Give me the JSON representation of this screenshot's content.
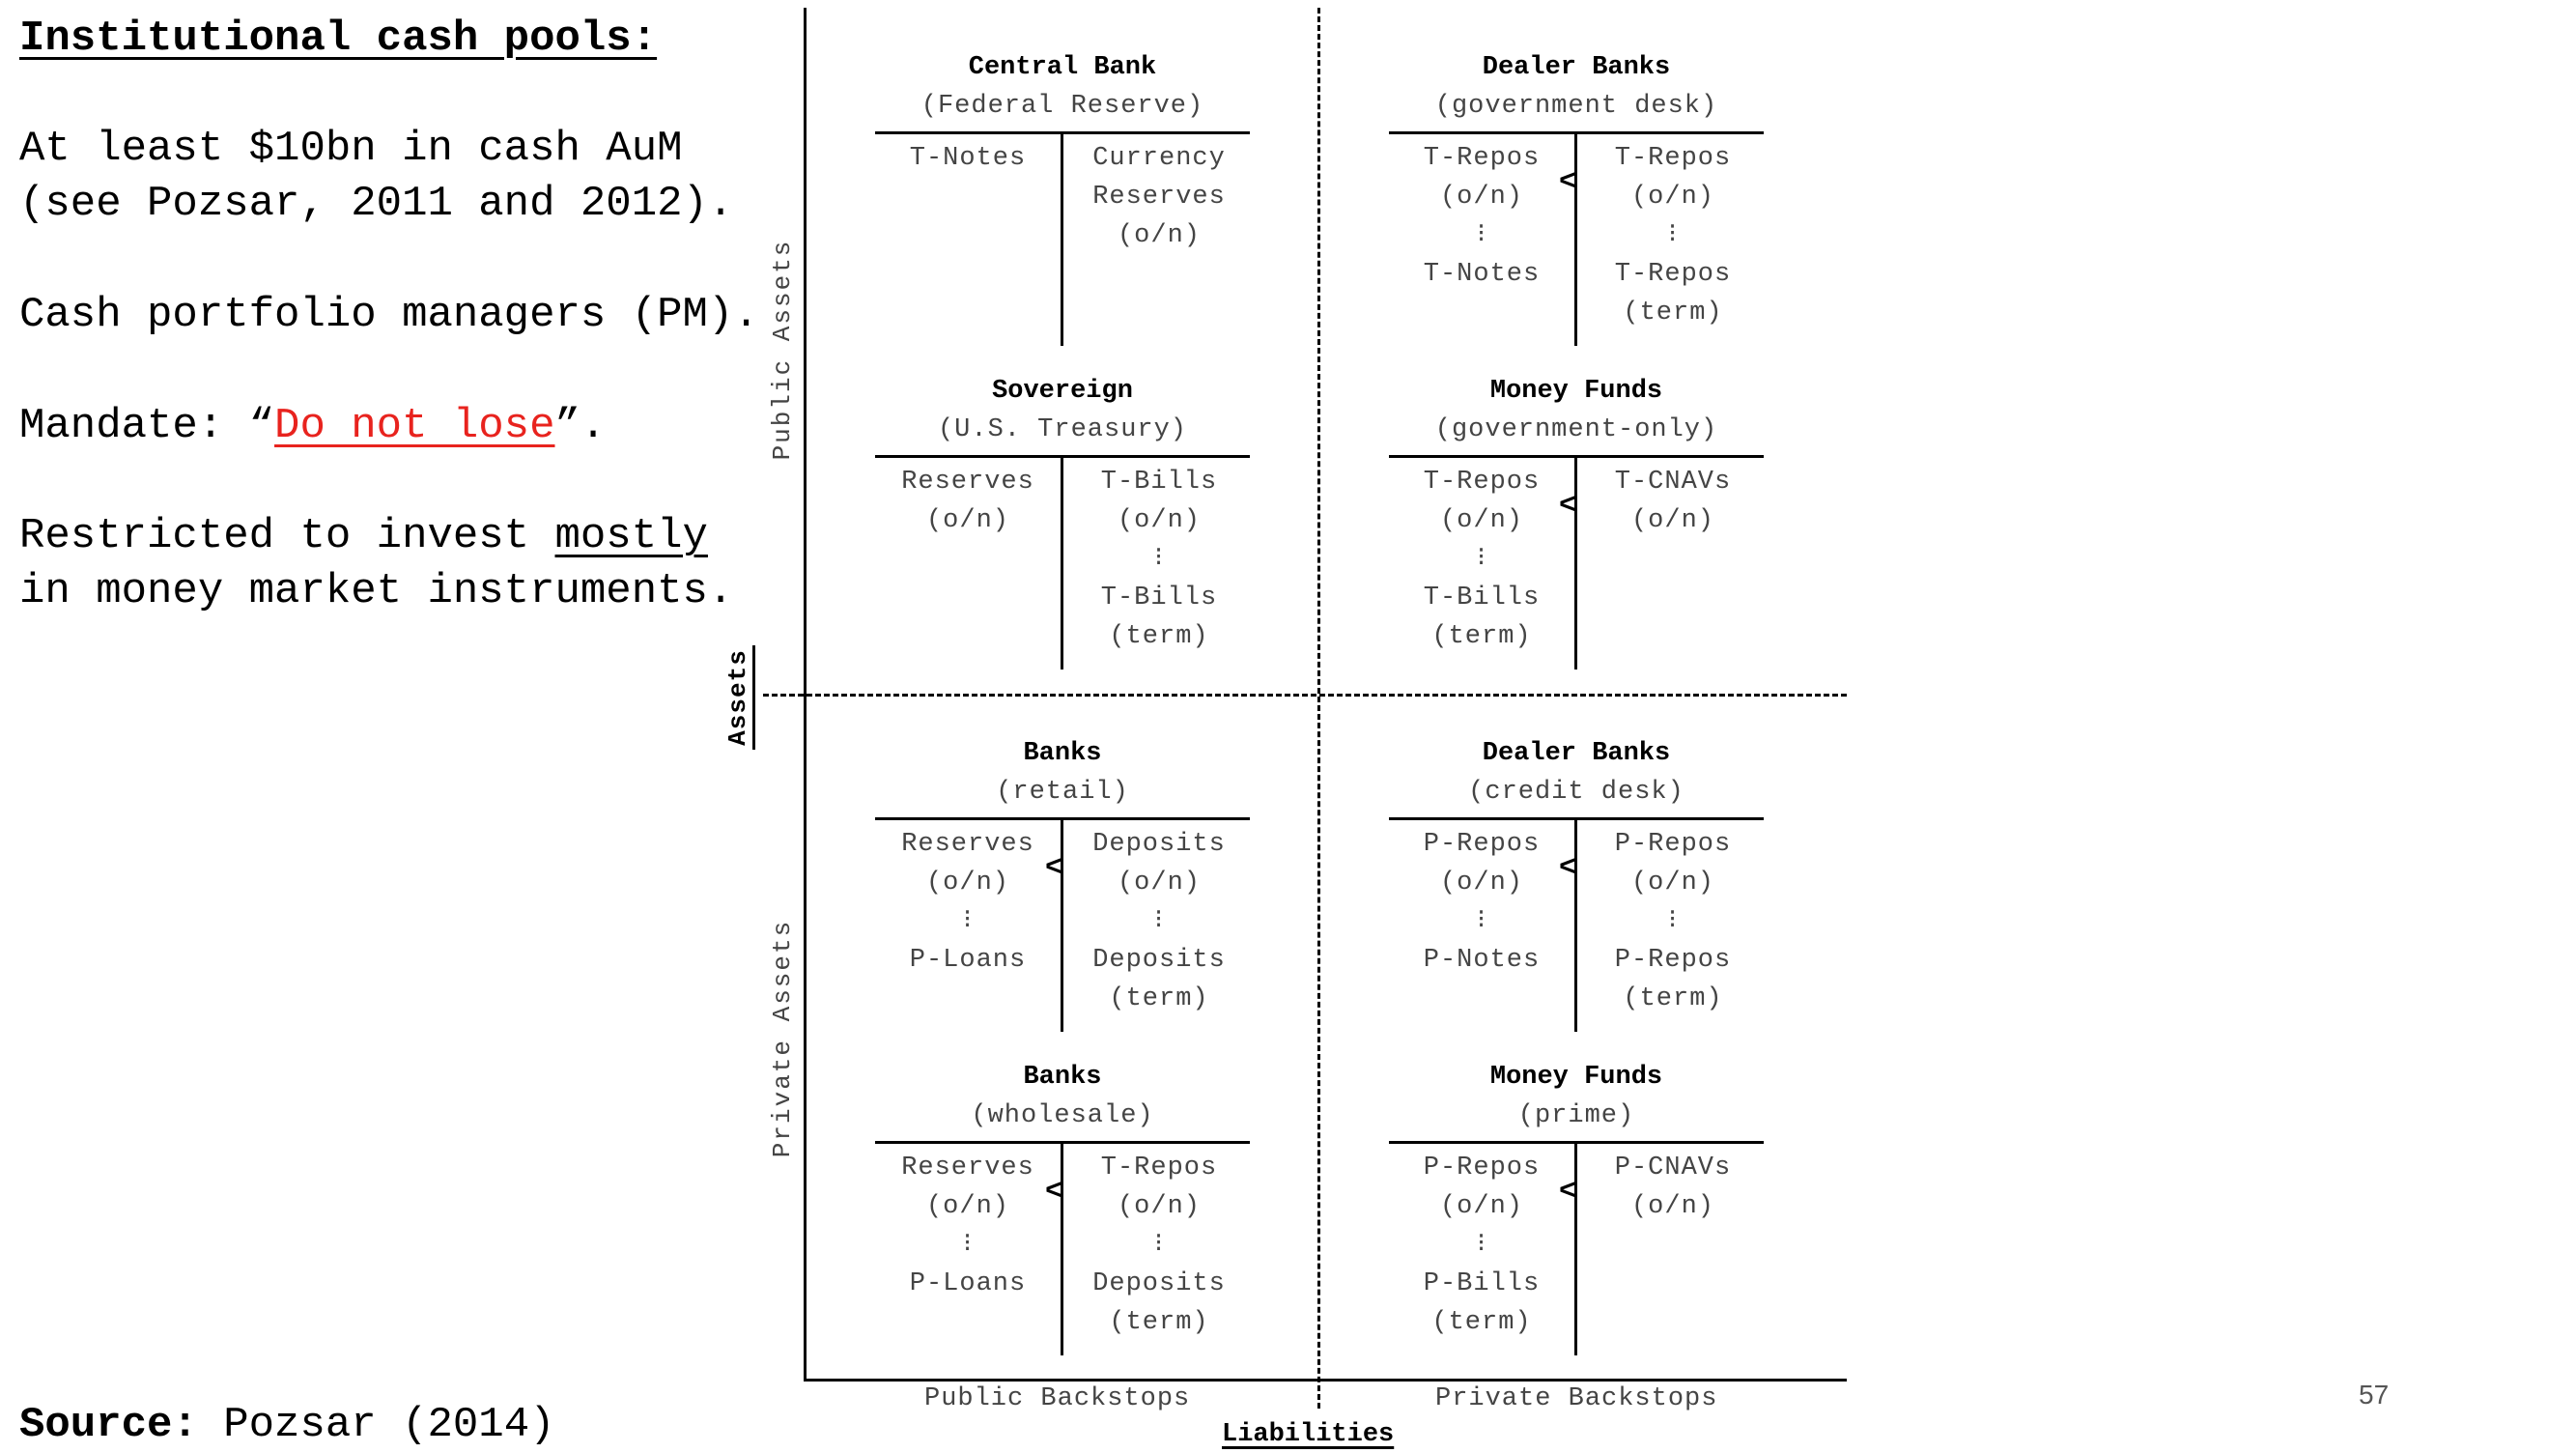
{
  "left_panel": {
    "heading": "Institutional cash pools:",
    "line1": "At least $10bn in cash AuM",
    "line2": "(see Pozsar, 2011 and 2012).",
    "line3": "Cash portfolio managers (PM).",
    "mandate_prefix": "Mandate: “",
    "mandate_emphasis": "Do not lose",
    "mandate_suffix": "”.",
    "restricted_prefix": "Restricted to invest ",
    "restricted_emphasis": "mostly",
    "restricted_line2": "in money market instruments.",
    "source_label": "Source:",
    "source_value": " Pozsar (2014)"
  },
  "axes": {
    "y_public": "Public Assets",
    "y_private": "Private Assets",
    "y_main": "Assets",
    "x_main": "Liabilities",
    "x_public": "Public Backstops",
    "x_private": "Private Backstops"
  },
  "balance_sheets": [
    {
      "title": "Central Bank",
      "subtitle": "(Federal Reserve)",
      "left": [
        "T-Notes"
      ],
      "right": [
        "Currency",
        "Reserves",
        "(o/n)"
      ],
      "relation": ""
    },
    {
      "title": "Dealer Banks",
      "subtitle": "(government desk)",
      "left": [
        "T-Repos",
        "(o/n)",
        "⁝",
        "T-Notes"
      ],
      "right": [
        "T-Repos",
        "(o/n)",
        "⁝",
        "T-Repos",
        "(term)"
      ],
      "relation": "<"
    },
    {
      "title": "Sovereign",
      "subtitle": "(U.S. Treasury)",
      "left": [
        "Reserves",
        "(o/n)"
      ],
      "right": [
        "T-Bills",
        "(o/n)",
        "⁝",
        "T-Bills",
        "(term)"
      ],
      "relation": ""
    },
    {
      "title": "Money Funds",
      "subtitle": "(government-only)",
      "left": [
        "T-Repos",
        "(o/n)",
        "⁝",
        "T-Bills",
        "(term)"
      ],
      "right": [
        "T-CNAVs",
        "(o/n)"
      ],
      "relation": "<"
    },
    {
      "title": "Banks",
      "subtitle": "(retail)",
      "left": [
        "Reserves",
        "(o/n)",
        "⁝",
        "P-Loans"
      ],
      "right": [
        "Deposits",
        "(o/n)",
        "⁝",
        "Deposits",
        "(term)"
      ],
      "relation": "<"
    },
    {
      "title": "Dealer Banks",
      "subtitle": "(credit desk)",
      "left": [
        "P-Repos",
        "(o/n)",
        "⁝",
        "P-Notes"
      ],
      "right": [
        "P-Repos",
        "(o/n)",
        "⁝",
        "P-Repos",
        "(term)"
      ],
      "relation": "<"
    },
    {
      "title": "Banks",
      "subtitle": "(wholesale)",
      "left": [
        "Reserves",
        "(o/n)",
        "⁝",
        "P-Loans"
      ],
      "right": [
        "T-Repos",
        "(o/n)",
        "⁝",
        "Deposits",
        "(term)"
      ],
      "relation": "<"
    },
    {
      "title": "Money Funds",
      "subtitle": "(prime)",
      "left": [
        "P-Repos",
        "(o/n)",
        "⁝",
        "P-Bills",
        "(term)"
      ],
      "right": [
        "P-CNAVs",
        "(o/n)"
      ],
      "relation": "<"
    }
  ],
  "page_number": "57"
}
